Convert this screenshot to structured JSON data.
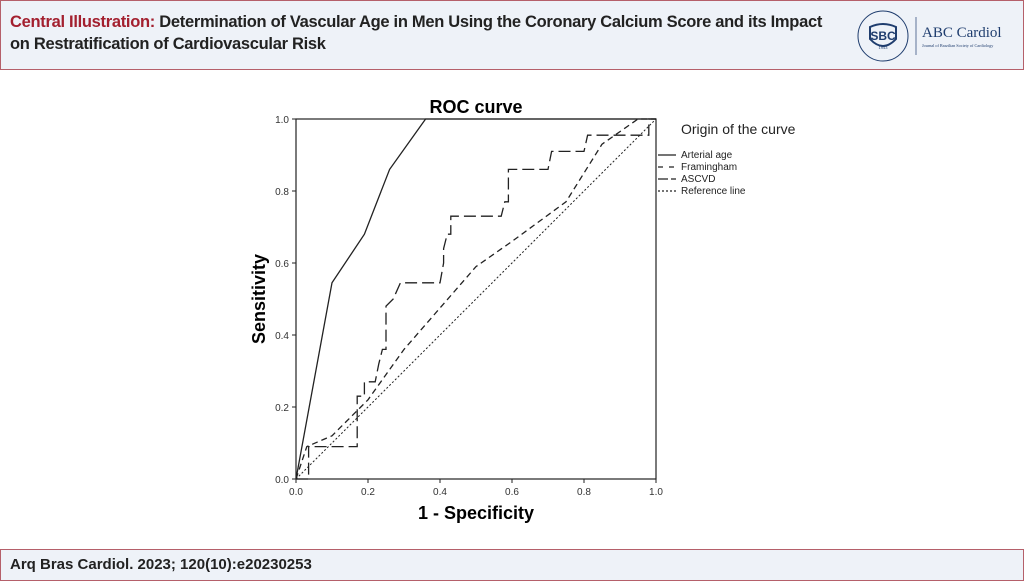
{
  "header": {
    "title_lead": "Central Illustration:",
    "title_rest": " Determination of Vascular Age in Men Using the Coronary Calcium Score and its Impact on Restratification of Cardiovascular Risk",
    "logo_sbc": "SBC",
    "logo_ring": "SOCIEDADE BRASILEIRA DE CARDIOLOGIA",
    "logo_year": "1943",
    "brand": "ABC Cardiol",
    "brand_sub": "Journal of Brazilian Society of Cardiology"
  },
  "footer": {
    "citation": "Arq Bras Cardiol. 2023; 120(10):e20230253"
  },
  "chart_data": {
    "type": "line",
    "title": "ROC curve",
    "xlabel": "1 - Specificity",
    "ylabel": "Sensitivity",
    "xlim": [
      0,
      1
    ],
    "ylim": [
      0,
      1
    ],
    "xticks": [
      "0.0",
      "0.2",
      "0.4",
      "0.6",
      "0.8",
      "1.0"
    ],
    "yticks": [
      "0.0",
      "0.2",
      "0.4",
      "0.6",
      "0.8",
      "1.0"
    ],
    "legend_title": "Origin of the curve",
    "legend_position": "top-right",
    "series": [
      {
        "name": "Arterial age",
        "style": "solid",
        "points": [
          [
            0,
            0
          ],
          [
            0.1,
            0.545
          ],
          [
            0.19,
            0.68
          ],
          [
            0.26,
            0.86
          ],
          [
            0.36,
            1
          ],
          [
            1,
            1
          ]
        ]
      },
      {
        "name": "Framingham",
        "style": "dashed-short",
        "points": [
          [
            0,
            0
          ],
          [
            0.03,
            0.09
          ],
          [
            0.1,
            0.12
          ],
          [
            0.2,
            0.22
          ],
          [
            0.3,
            0.36
          ],
          [
            0.5,
            0.59
          ],
          [
            0.6,
            0.66
          ],
          [
            0.75,
            0.77
          ],
          [
            0.85,
            0.93
          ],
          [
            0.95,
            1
          ],
          [
            1,
            1
          ]
        ]
      },
      {
        "name": "ASCVD",
        "style": "dashed-long",
        "points": [
          [
            0,
            0
          ],
          [
            0.035,
            0
          ],
          [
            0.035,
            0.09
          ],
          [
            0.17,
            0.09
          ],
          [
            0.17,
            0.23
          ],
          [
            0.19,
            0.23
          ],
          [
            0.19,
            0.27
          ],
          [
            0.22,
            0.27
          ],
          [
            0.23,
            0.32
          ],
          [
            0.24,
            0.36
          ],
          [
            0.25,
            0.36
          ],
          [
            0.25,
            0.48
          ],
          [
            0.27,
            0.5
          ],
          [
            0.29,
            0.545
          ],
          [
            0.4,
            0.545
          ],
          [
            0.41,
            0.6
          ],
          [
            0.41,
            0.64
          ],
          [
            0.42,
            0.68
          ],
          [
            0.43,
            0.68
          ],
          [
            0.43,
            0.73
          ],
          [
            0.57,
            0.73
          ],
          [
            0.58,
            0.77
          ],
          [
            0.59,
            0.77
          ],
          [
            0.59,
            0.86
          ],
          [
            0.7,
            0.86
          ],
          [
            0.71,
            0.91
          ],
          [
            0.8,
            0.91
          ],
          [
            0.81,
            0.955
          ],
          [
            0.98,
            0.955
          ],
          [
            0.98,
            1
          ],
          [
            1,
            1
          ]
        ]
      },
      {
        "name": "Reference line",
        "style": "dotted",
        "points": [
          [
            0,
            0
          ],
          [
            1,
            1
          ]
        ]
      }
    ]
  }
}
